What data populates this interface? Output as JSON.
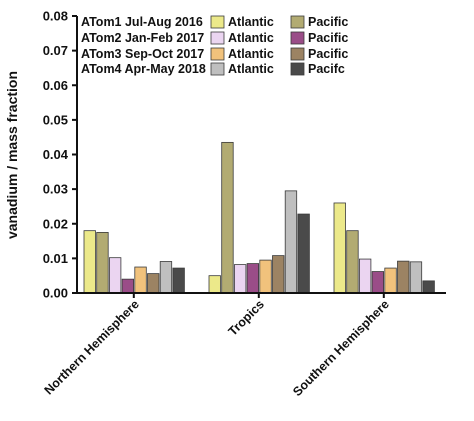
{
  "chart_data": {
    "type": "bar",
    "ylabel": "vanadium / mass fraction",
    "ylim": [
      0,
      0.08
    ],
    "yticks": [
      "0.00",
      "0.01",
      "0.02",
      "0.03",
      "0.04",
      "0.05",
      "0.06",
      "0.07",
      "0.08"
    ],
    "categories": [
      "Northern Hemisphere",
      "Tropics",
      "Southern Hemisphere"
    ],
    "legend": {
      "placement": "top",
      "campaigns": [
        "ATom1 Jul-Aug 2016",
        "ATom2 Jan-Feb 2017",
        "ATom3 Sep-Oct 2017",
        "ATom4 Apr-May 2018"
      ]
    },
    "series": [
      {
        "name": "Atlantic",
        "campaign": "ATom1 Jul-Aug 2016",
        "color": "#ece98a",
        "values": [
          0.018,
          0.005,
          0.026
        ]
      },
      {
        "name": "Pacific",
        "campaign": "ATom1 Jul-Aug 2016",
        "color": "#b2ab72",
        "values": [
          0.0175,
          0.0435,
          0.018
        ]
      },
      {
        "name": "Atlantic",
        "campaign": "ATom2 Jan-Feb 2017",
        "color": "#ebd5f1",
        "values": [
          0.0102,
          0.0082,
          0.0098
        ]
      },
      {
        "name": "Pacific",
        "campaign": "ATom2 Jan-Feb 2017",
        "color": "#9a4d88",
        "values": [
          0.004,
          0.0085,
          0.0062
        ]
      },
      {
        "name": "Atlantic",
        "campaign": "ATom3 Sep-Oct 2017",
        "color": "#f1c27c",
        "values": [
          0.0075,
          0.0095,
          0.0072
        ]
      },
      {
        "name": "Pacific",
        "campaign": "ATom3 Sep-Oct 2017",
        "color": "#9c8363",
        "values": [
          0.0056,
          0.0108,
          0.0092
        ]
      },
      {
        "name": "Atlantic",
        "campaign": "ATom4 Apr-May 2018",
        "color": "#bfbfbf",
        "values": [
          0.0091,
          0.0295,
          0.009
        ]
      },
      {
        "name": "Pacifc",
        "campaign": "ATom4 Apr-May 2018",
        "color": "#4a4a4a",
        "values": [
          0.0072,
          0.0228,
          0.0035
        ]
      }
    ]
  }
}
